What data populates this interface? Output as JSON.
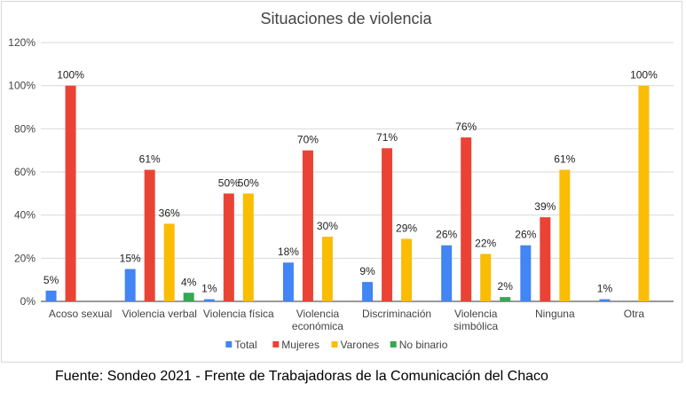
{
  "chart_data": {
    "type": "bar",
    "title": "Situaciones de violencia",
    "categories": [
      "Acoso sexual",
      "Violencia verbal",
      "Violencia física",
      "Violencia\neconómica",
      "Discriminación",
      "Violencia\nsimbólica",
      "Ninguna",
      "Otra"
    ],
    "series": [
      {
        "name": "Total",
        "color": "#4285f4",
        "values": [
          5,
          15,
          1,
          18,
          9,
          26,
          26,
          1
        ],
        "labels": [
          "5%",
          "15%",
          "1%",
          "18%",
          "9%",
          "26%",
          "26%",
          "1%"
        ]
      },
      {
        "name": "Mujeres",
        "color": "#ea4335",
        "values": [
          100,
          61,
          50,
          70,
          71,
          76,
          39,
          0
        ],
        "labels": [
          "100%",
          "61%",
          "50%",
          "70%",
          "71%",
          "76%",
          "39%",
          ""
        ]
      },
      {
        "name": "Varones",
        "color": "#fbbc04",
        "values": [
          0,
          36,
          50,
          30,
          29,
          22,
          61,
          100
        ],
        "labels": [
          "",
          "36%",
          "50%",
          "30%",
          "29%",
          "22%",
          "61%",
          "100%"
        ]
      },
      {
        "name": "No binario",
        "color": "#34a853",
        "values": [
          0,
          4,
          0,
          0,
          0,
          2,
          0,
          0
        ],
        "labels": [
          "",
          "4%",
          "",
          "",
          "",
          "2%",
          "",
          ""
        ]
      }
    ],
    "ylim": [
      0,
      120
    ],
    "yticks": [
      "0%",
      "20%",
      "40%",
      "60%",
      "80%",
      "100%",
      "120%"
    ],
    "grid": true,
    "legend_position": "bottom"
  },
  "source_note": "Fuente: Sondeo 2021 - Frente de Trabajadoras de la Comunicación del Chaco"
}
